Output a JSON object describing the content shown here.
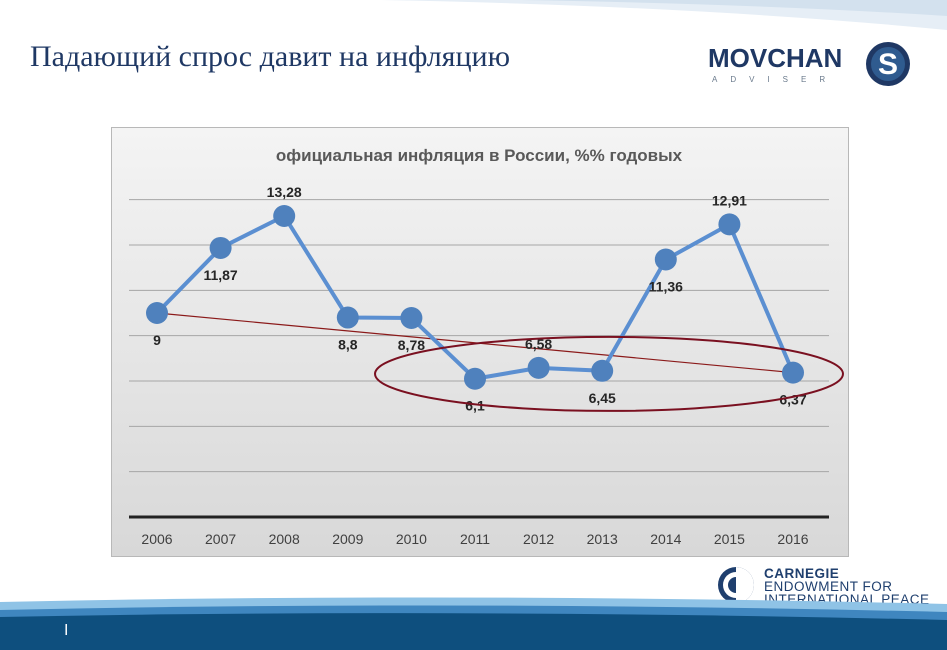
{
  "slide": {
    "title": "Падающий спрос давит на инфляцию",
    "page_marker": "I"
  },
  "logos": {
    "movchan": {
      "name": "MOVCHAN",
      "letter": "S",
      "subtitle": "ADVISER"
    },
    "carnegie": {
      "line1": "CARNEGIE",
      "line2": "ENDOWMENT FOR",
      "line3": "INTERNATIONAL PEACE"
    }
  },
  "colors": {
    "title": "#1f3864",
    "series_line": "#5b8fd1",
    "series_marker": "#4f81bd",
    "trend_line": "#8b1a1a",
    "highlight_ellipse": "#7a1020",
    "band_dark": "#0e4f7e",
    "band_light": "#6fb3e0"
  },
  "chart_data": {
    "type": "line",
    "title": "официальная инфляция в России, %% годовых",
    "categories": [
      "2006",
      "2007",
      "2008",
      "2009",
      "2010",
      "2011",
      "2012",
      "2013",
      "2014",
      "2015",
      "2016"
    ],
    "values": [
      9,
      11.87,
      13.28,
      8.8,
      8.78,
      6.1,
      6.58,
      6.45,
      11.36,
      12.91,
      6.37
    ],
    "data_labels": [
      "9",
      "11,87",
      "13,28",
      "8,8",
      "8,78",
      "6,1",
      "6,58",
      "6,45",
      "11,36",
      "12,91",
      "6,37"
    ],
    "ylim": [
      0,
      15
    ],
    "grid": true,
    "trendline": {
      "from": 9,
      "to": 6.37
    },
    "highlight": {
      "type": "ellipse",
      "from_category": "2011",
      "to_category": "2016"
    }
  }
}
